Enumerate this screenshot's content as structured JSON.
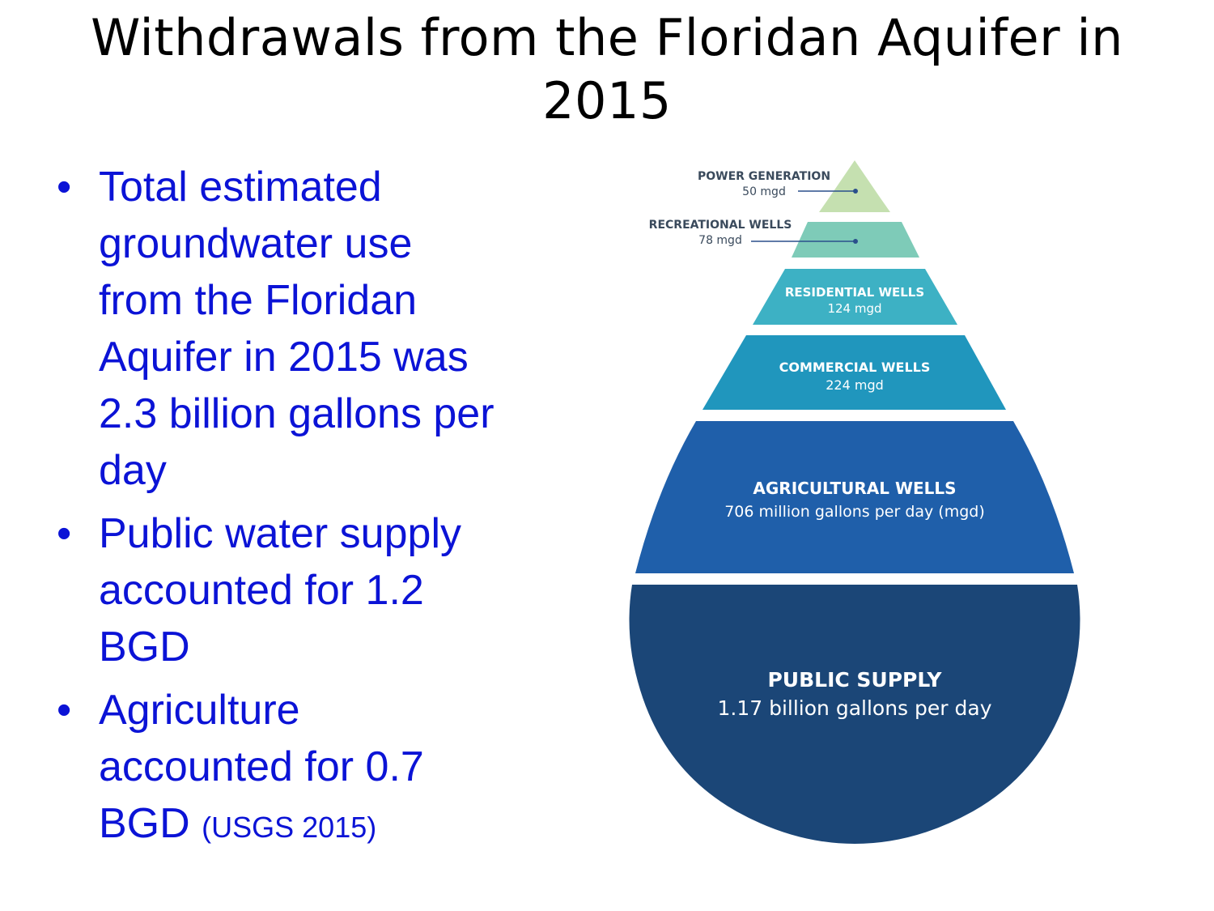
{
  "title": {
    "line1": "Withdrawals from the Floridan Aquifer in",
    "line2": "2015"
  },
  "bullets": [
    {
      "lines": [
        "Total estimated",
        "groundwater use",
        "from the Floridan",
        "Aquifer in 2015 was",
        "2.3 billion gallons per",
        "day"
      ]
    },
    {
      "lines": [
        "Public water supply",
        "accounted for 1.2",
        "BGD"
      ]
    },
    {
      "lines": [
        "Agriculture",
        "accounted for 0.7",
        "BGD"
      ],
      "citation": "(USGS 2015)"
    }
  ],
  "pyramid": {
    "tiers": [
      {
        "name": "POWER GENERATION",
        "value": "50 mgd",
        "mgd": 50,
        "color": "#c5e0b0"
      },
      {
        "name": "RECREATIONAL WELLS",
        "value": "78 mgd",
        "mgd": 78,
        "color": "#7ecbb8"
      },
      {
        "name": "RESIDENTIAL WELLS",
        "value": "124 mgd",
        "mgd": 124,
        "color": "#3db1c4"
      },
      {
        "name": "COMMERCIAL WELLS",
        "value": "224 mgd",
        "mgd": 224,
        "color": "#2096bd"
      },
      {
        "name": "AGRICULTURAL WELLS",
        "value": "706 million gallons per day (mgd)",
        "mgd": 706,
        "color": "#1f5faa"
      },
      {
        "name": "PUBLIC SUPPLY",
        "value": "1.17 billion gallons per day",
        "mgd": 1170,
        "color": "#1b4677"
      }
    ],
    "outside_label_color": "#3a4a5c",
    "inside_label_color": "#ffffff",
    "leader_line_color": "#2a4f8c"
  }
}
